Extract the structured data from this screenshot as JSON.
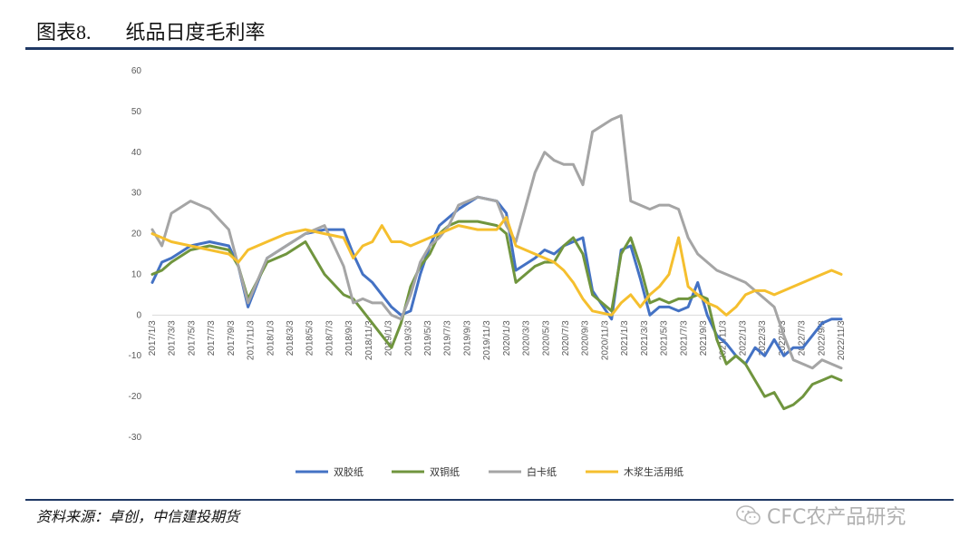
{
  "header": {
    "title_prefix": "图表",
    "title_num": "8.",
    "title_text": "纸品日度毛利率"
  },
  "footer": {
    "source": "资料来源：卓创，中信建投期货",
    "watermark": "CFC农产品研究"
  },
  "chart_data": {
    "type": "line",
    "ylim": [
      -30,
      60
    ],
    "yticks": [
      -30,
      -20,
      -10,
      0,
      10,
      20,
      30,
      40,
      50,
      60
    ],
    "grid": false,
    "legend_position": "bottom",
    "xlim": [
      0,
      72
    ],
    "xticks": [
      "2017/1/3",
      "2017/3/3",
      "2017/5/3",
      "2017/7/3",
      "2017/9/3",
      "2017/11/3",
      "2018/1/3",
      "2018/3/3",
      "2018/5/3",
      "2018/7/3",
      "2018/9/3",
      "2018/11/3",
      "2019/1/3",
      "2019/3/3",
      "2019/5/3",
      "2019/7/3",
      "2019/9/3",
      "2019/11/3",
      "2020/1/3",
      "2020/3/3",
      "2020/5/3",
      "2020/7/3",
      "2020/9/3",
      "2020/11/3",
      "2021/1/3",
      "2021/3/3",
      "2021/5/3",
      "2021/7/3",
      "2021/9/3",
      "2021/11/3",
      "2022/1/3",
      "2022/3/3",
      "2022/5/3",
      "2022/7/3",
      "2022/9/3",
      "2022/11/3"
    ],
    "series": [
      {
        "name": "双胶纸",
        "color": "#4472c4",
        "x": [
          0,
          1,
          2,
          4,
          6,
          8,
          9,
          10,
          12,
          14,
          16,
          18,
          20,
          21,
          22,
          23,
          24,
          25,
          26,
          27,
          28,
          29,
          30,
          31,
          32,
          34,
          36,
          37,
          38,
          40,
          41,
          42,
          43,
          44,
          45,
          46,
          48,
          49,
          50,
          51,
          52,
          53,
          54,
          55,
          56,
          57,
          58,
          59,
          60,
          61,
          62,
          63,
          64,
          65,
          66,
          67,
          68,
          69,
          70,
          71,
          72
        ],
        "y": [
          8,
          13,
          14,
          17,
          18,
          17,
          12,
          2,
          14,
          17,
          20,
          21,
          21,
          15,
          10,
          8,
          5,
          2,
          0,
          1,
          10,
          17,
          22,
          24,
          26,
          29,
          28,
          25,
          11,
          14,
          16,
          15,
          17,
          18,
          19,
          6,
          -1,
          16,
          17,
          9,
          0,
          2,
          2,
          1,
          2,
          8,
          0,
          -5,
          -7,
          -10,
          -12,
          -8,
          -10,
          -6,
          -10,
          -8,
          -8,
          -5,
          -2,
          -1,
          -1
        ]
      },
      {
        "name": "双铜纸",
        "color": "#70953e",
        "x": [
          0,
          1,
          2,
          4,
          6,
          8,
          9,
          10,
          12,
          14,
          16,
          18,
          20,
          21,
          22,
          23,
          24,
          25,
          26,
          27,
          28,
          29,
          30,
          31,
          32,
          34,
          36,
          37,
          38,
          40,
          41,
          42,
          43,
          44,
          45,
          46,
          48,
          49,
          50,
          51,
          52,
          53,
          54,
          55,
          56,
          57,
          58,
          59,
          60,
          61,
          62,
          63,
          64,
          65,
          66,
          67,
          68,
          69,
          70,
          71,
          72
        ],
        "y": [
          10,
          11,
          13,
          16,
          17,
          16,
          12,
          4,
          13,
          15,
          18,
          10,
          5,
          4,
          1,
          -2,
          -5,
          -8,
          -2,
          7,
          12,
          15,
          20,
          22,
          23,
          23,
          22,
          20,
          8,
          12,
          13,
          13,
          17,
          19,
          15,
          5,
          1,
          15,
          19,
          12,
          3,
          4,
          3,
          4,
          4,
          5,
          4,
          -6,
          -12,
          -10,
          -12,
          -16,
          -20,
          -19,
          -23,
          -22,
          -20,
          -17,
          -16,
          -15,
          -16
        ]
      },
      {
        "name": "白卡纸",
        "color": "#a5a5a5",
        "x": [
          0,
          1,
          2,
          4,
          6,
          8,
          9,
          10,
          12,
          14,
          16,
          18,
          20,
          21,
          22,
          23,
          24,
          25,
          26,
          27,
          28,
          29,
          30,
          31,
          32,
          34,
          36,
          37,
          38,
          40,
          41,
          42,
          43,
          44,
          45,
          46,
          48,
          49,
          50,
          51,
          52,
          53,
          54,
          55,
          56,
          57,
          58,
          59,
          60,
          61,
          62,
          63,
          64,
          65,
          66,
          67,
          68,
          69,
          70,
          71,
          72
        ],
        "y": [
          21,
          17,
          25,
          28,
          26,
          21,
          12,
          3,
          14,
          17,
          20,
          22,
          12,
          3,
          4,
          3,
          3,
          0,
          -1,
          5,
          13,
          17,
          19,
          22,
          27,
          29,
          28,
          22,
          18,
          35,
          40,
          38,
          37,
          37,
          32,
          45,
          48,
          49,
          28,
          27,
          26,
          27,
          27,
          26,
          19,
          15,
          13,
          11,
          10,
          9,
          8,
          6,
          4,
          2,
          -5,
          -11,
          -12,
          -13,
          -11,
          -12,
          -13
        ]
      },
      {
        "name": "木浆生活用纸",
        "color": "#f5bf2e",
        "x": [
          0,
          1,
          2,
          4,
          6,
          8,
          9,
          10,
          12,
          14,
          16,
          18,
          20,
          21,
          22,
          23,
          24,
          25,
          26,
          27,
          28,
          29,
          30,
          31,
          32,
          34,
          36,
          37,
          38,
          40,
          41,
          42,
          43,
          44,
          45,
          46,
          48,
          49,
          50,
          51,
          52,
          53,
          54,
          55,
          56,
          57,
          58,
          59,
          60,
          61,
          62,
          63,
          64,
          65,
          66,
          67,
          68,
          69,
          70,
          71,
          72
        ],
        "y": [
          20,
          19,
          18,
          17,
          16,
          15,
          13,
          16,
          18,
          20,
          21,
          20,
          19,
          14,
          17,
          18,
          22,
          18,
          18,
          17,
          18,
          19,
          20,
          21,
          22,
          21,
          21,
          24,
          17,
          15,
          14,
          13,
          11,
          8,
          4,
          1,
          0,
          3,
          5,
          2,
          5,
          7,
          10,
          19,
          7,
          5,
          3,
          2,
          0,
          2,
          5,
          6,
          6,
          5,
          6,
          7,
          8,
          9,
          10,
          11,
          10
        ]
      }
    ]
  }
}
